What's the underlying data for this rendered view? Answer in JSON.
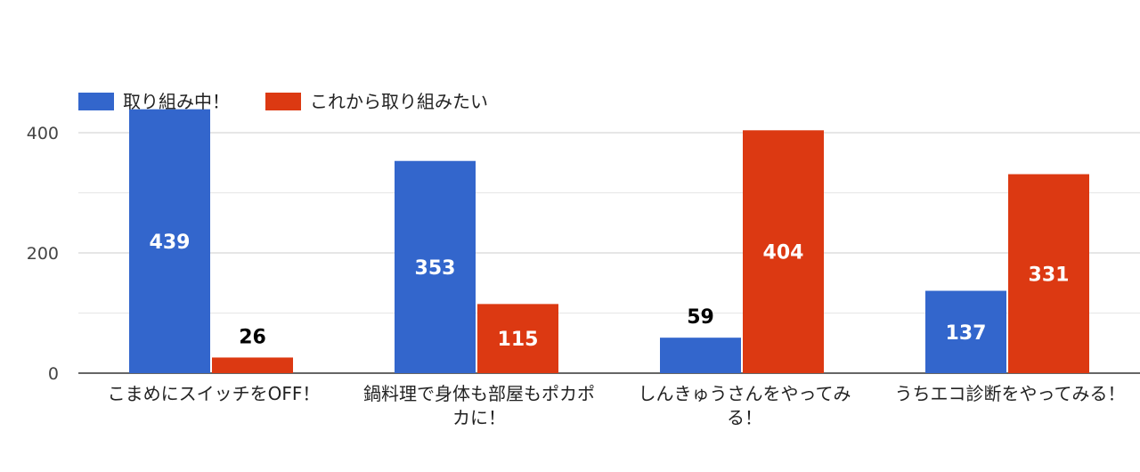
{
  "chart_data": {
    "type": "bar",
    "title": "",
    "xlabel": "",
    "ylabel": "",
    "categories": [
      [
        "こまめにスイッチをOFF！"
      ],
      [
        "鍋料理で身体も部屋もポカポ",
        "カに！"
      ],
      [
        "しんきゅうさんをやってみ",
        "る！"
      ],
      [
        "うちエコ診断をやってみる！"
      ]
    ],
    "series": [
      {
        "name": "取り組み中！",
        "color": "#3366cc",
        "values": [
          439,
          353,
          59,
          137
        ]
      },
      {
        "name": "これから取り組みたい",
        "color": "#dc3912",
        "values": [
          26,
          115,
          404,
          331
        ]
      }
    ],
    "ylim": [
      0,
      440
    ],
    "yticks": [
      0,
      200,
      400
    ],
    "grid": true,
    "legend": "top-left"
  }
}
